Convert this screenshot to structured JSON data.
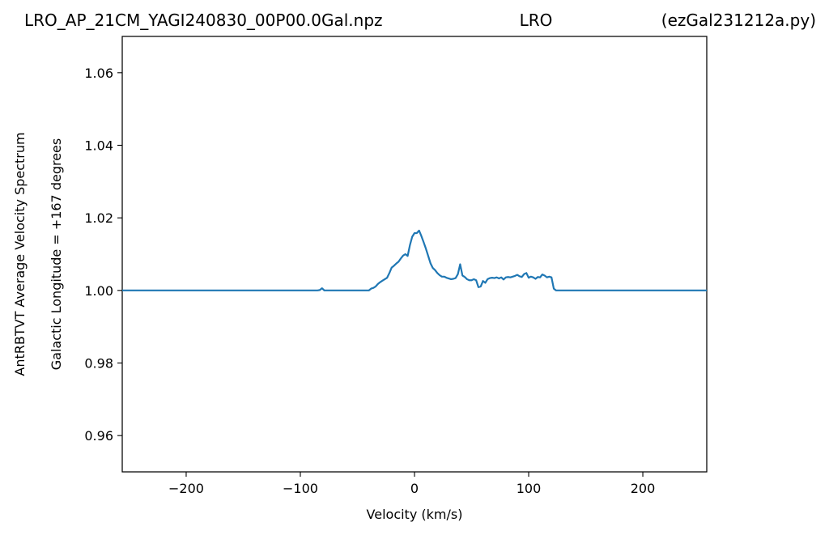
{
  "titles": {
    "left": "LRO_AP_21CM_YAGI240830_00P00.0Gal.npz",
    "center": "LRO",
    "right": "(ezGal231212a.py)"
  },
  "chart_data": {
    "type": "line",
    "xlabel": "Velocity (km/s)",
    "ylabel_outer": "AntRBTVT Average Velocity Spectrum",
    "ylabel_inner": "Galactic Longitude = +167 degrees",
    "xlim": [
      -256,
      256
    ],
    "ylim": [
      0.95,
      1.07
    ],
    "xticks": [
      -200,
      -100,
      0,
      100,
      200
    ],
    "xtick_labels": [
      "−200",
      "−100",
      "0",
      "100",
      "200"
    ],
    "yticks": [
      0.96,
      0.98,
      1.0,
      1.02,
      1.04,
      1.06
    ],
    "ytick_labels": [
      "0.96",
      "0.98",
      "1.00",
      "1.02",
      "1.04",
      "1.06"
    ],
    "grid": false,
    "line_color": "#1f77b4",
    "series": [
      {
        "x": [
          -256,
          -85,
          -83,
          -81,
          -79,
          -40,
          -38,
          -36,
          -34,
          -32,
          -30,
          -28,
          -26,
          -24,
          -22,
          -20,
          -18,
          -16,
          -14,
          -12,
          -10,
          -8,
          -6,
          -4,
          -2,
          0,
          2,
          4,
          6,
          8,
          10,
          12,
          14,
          16,
          18,
          20,
          22,
          24,
          26,
          28,
          30,
          32,
          34,
          36,
          38,
          40,
          42,
          44,
          45,
          46,
          48,
          50,
          52,
          54,
          56,
          58,
          60,
          62,
          64,
          66,
          68,
          70,
          72,
          74,
          76,
          78,
          80,
          82,
          84,
          86,
          88,
          90,
          92,
          94,
          96,
          98,
          100,
          102,
          104,
          106,
          108,
          110,
          112,
          114,
          116,
          118,
          120,
          122,
          124,
          126,
          128,
          130,
          256
        ],
        "y": [
          1.0,
          1.0,
          1.0001,
          1.0006,
          1.0,
          1.0,
          1.0005,
          1.0007,
          1.0011,
          1.0018,
          1.0023,
          1.0027,
          1.0031,
          1.0035,
          1.0048,
          1.0063,
          1.0068,
          1.0074,
          1.0079,
          1.0088,
          1.0096,
          1.01,
          1.0095,
          1.0125,
          1.0148,
          1.0158,
          1.0158,
          1.0165,
          1.015,
          1.0133,
          1.0115,
          1.0095,
          1.0075,
          1.0062,
          1.0056,
          1.0048,
          1.0042,
          1.0038,
          1.0038,
          1.0035,
          1.0033,
          1.0031,
          1.0032,
          1.0034,
          1.0045,
          1.0072,
          1.0041,
          1.0037,
          1.0034,
          1.0031,
          1.0028,
          1.0028,
          1.0031,
          1.0028,
          1.0009,
          1.0011,
          1.0026,
          1.0021,
          1.0031,
          1.0034,
          1.0035,
          1.0034,
          1.0036,
          1.0033,
          1.0036,
          1.003,
          1.0036,
          1.0037,
          1.0036,
          1.0038,
          1.004,
          1.0043,
          1.0039,
          1.0037,
          1.0045,
          1.0048,
          1.0035,
          1.0038,
          1.0036,
          1.0032,
          1.0037,
          1.0036,
          1.0044,
          1.0041,
          1.0036,
          1.0038,
          1.0036,
          1.0005,
          1.0,
          1.0,
          1.0,
          1.0,
          1.0
        ]
      }
    ]
  }
}
